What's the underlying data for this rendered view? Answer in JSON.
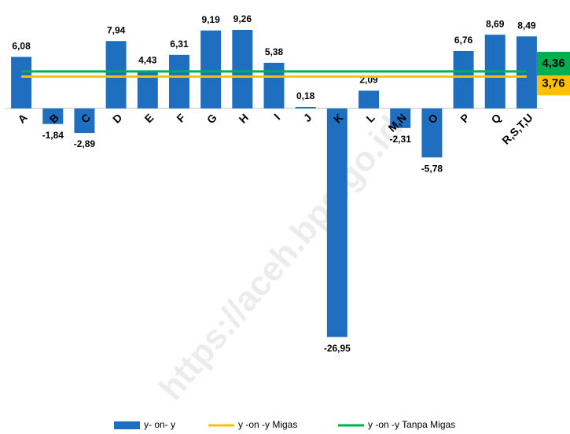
{
  "chart_data": {
    "type": "bar",
    "categories": [
      "A",
      "B",
      "C",
      "D",
      "E",
      "F",
      "G",
      "H",
      "I",
      "J",
      "K",
      "L",
      "M,N",
      "O",
      "P",
      "Q",
      "R,S,T,U"
    ],
    "series": [
      {
        "name": "y- on- y",
        "color": "#1f6fc0",
        "values": [
          6.08,
          -1.84,
          -2.89,
          7.94,
          4.43,
          6.31,
          9.19,
          9.26,
          5.38,
          0.18,
          -26.95,
          2.09,
          -2.31,
          -5.78,
          6.76,
          8.69,
          8.49
        ],
        "value_labels": [
          "6,08",
          "-1,84",
          "-2,89",
          "7,94",
          "4,43",
          "6,31",
          "9,19",
          "9,26",
          "5,38",
          "0,18",
          "-26,95",
          "2,09",
          "-2,31",
          "-5,78",
          "6,76",
          "8,69",
          "8,49"
        ]
      }
    ],
    "reference_lines": [
      {
        "name": "y -on -y Migas",
        "color": "#ffc000",
        "value": 3.76,
        "value_label": "3,76"
      },
      {
        "name": "y -on -y Tanpa Migas",
        "color": "#00b050",
        "value": 4.36,
        "value_label": "4,36"
      }
    ],
    "ylim": [
      -28,
      10
    ],
    "watermark": "https://aceh.bps.go.id"
  }
}
